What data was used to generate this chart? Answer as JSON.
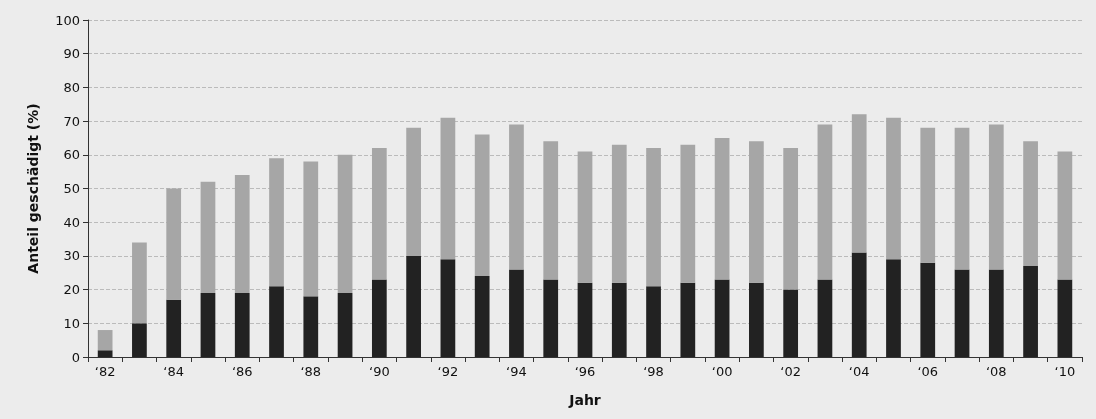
{
  "chart_data": {
    "type": "bar",
    "stacked": true,
    "xlabel": "Jahr",
    "ylabel": "Anteil geschädigt (%)",
    "categories": [
      "‘82",
      null,
      "‘84",
      null,
      "‘86",
      null,
      "‘88",
      null,
      "‘90",
      null,
      "‘92",
      null,
      "‘94",
      null,
      "‘96",
      null,
      "‘98",
      null,
      "‘00",
      null,
      "‘02",
      null,
      "‘04",
      null,
      "‘06",
      null,
      "‘08",
      null,
      "‘10"
    ],
    "series": [
      {
        "color": "#222222",
        "values": [
          2,
          10,
          17,
          19,
          19,
          21,
          18,
          19,
          23,
          30,
          29,
          24,
          26,
          23,
          22,
          22,
          21,
          22,
          23,
          22,
          20,
          23,
          31,
          29,
          28,
          26,
          26,
          27,
          23
        ]
      },
      {
        "color": "#a6a6a6",
        "values": [
          6,
          24,
          33,
          33,
          35,
          38,
          40,
          41,
          39,
          38,
          42,
          42,
          43,
          41,
          39,
          41,
          41,
          41,
          42,
          42,
          42,
          46,
          41,
          42,
          40,
          42,
          43,
          37,
          38
        ]
      }
    ],
    "ylim": [
      0,
      100
    ],
    "yticks": [
      0,
      10,
      20,
      30,
      40,
      50,
      60,
      70,
      80,
      90,
      100
    ],
    "grid": "y"
  }
}
